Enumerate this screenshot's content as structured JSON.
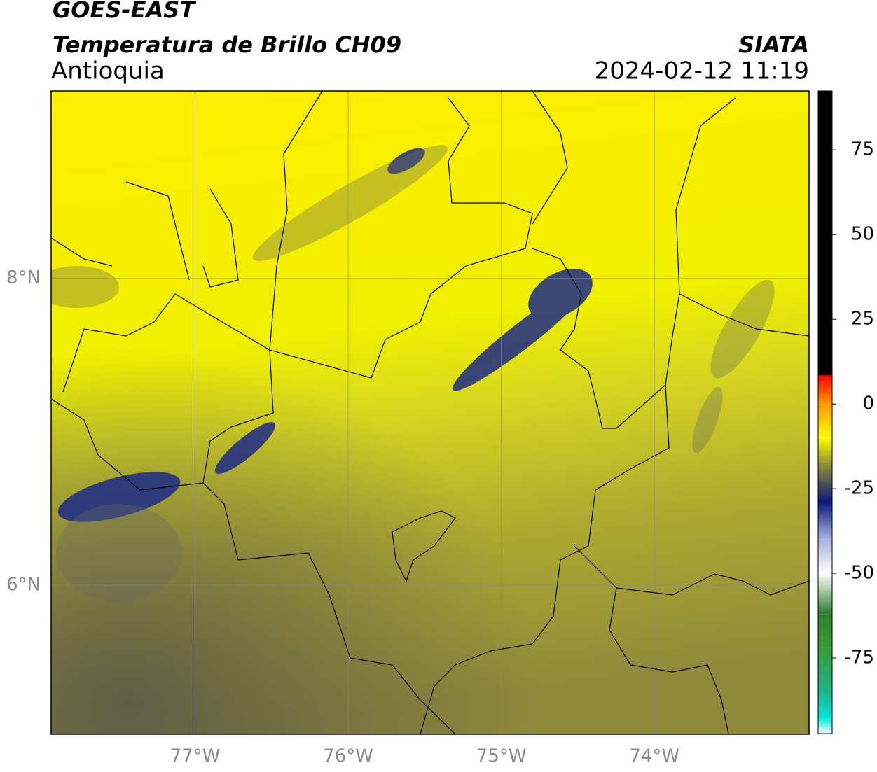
{
  "header": {
    "title": "GOES-EAST",
    "subtitle": "Temperatura de Brillo CH09",
    "region": "Antioquia",
    "source": "SIATA",
    "datetime": "2024-02-12 11:19"
  },
  "map": {
    "xlim": [
      -77.94,
      -72.99
    ],
    "ylim": [
      5.03,
      9.22
    ],
    "xticks": [
      {
        "value": -77,
        "label": "77°W"
      },
      {
        "value": -76,
        "label": "76°W"
      },
      {
        "value": -75,
        "label": "75°W"
      },
      {
        "value": -74,
        "label": "74°W"
      }
    ],
    "yticks": [
      {
        "value": 8,
        "label": "8°N"
      },
      {
        "value": 6,
        "label": "6°N"
      }
    ],
    "grid": true
  },
  "colorbar": {
    "lim": [
      -97.3,
      92.4
    ],
    "ticks": [
      75,
      50,
      25,
      0,
      -25,
      -50,
      -75
    ],
    "stops": [
      {
        "value": -97.3,
        "color": "#ffffff"
      },
      {
        "value": -92.8,
        "color": "#00e8dc"
      },
      {
        "value": -85,
        "color": "#1fb28c"
      },
      {
        "value": -72,
        "color": "#3a9a3a"
      },
      {
        "value": -62,
        "color": "#2e7d2e"
      },
      {
        "value": -50,
        "color": "#ffffff"
      },
      {
        "value": -40,
        "color": "#aab2dc"
      },
      {
        "value": -29,
        "color": "#0a1a80"
      },
      {
        "value": -23,
        "color": "#555555"
      },
      {
        "value": -17,
        "color": "#9a9a30"
      },
      {
        "value": -10,
        "color": "#ffff00"
      },
      {
        "value": 0,
        "color": "#ff9900"
      },
      {
        "value": 8.4,
        "color": "#ff0000"
      },
      {
        "value": 8.5,
        "color": "#000000"
      },
      {
        "value": 92.4,
        "color": "#000000"
      }
    ]
  }
}
